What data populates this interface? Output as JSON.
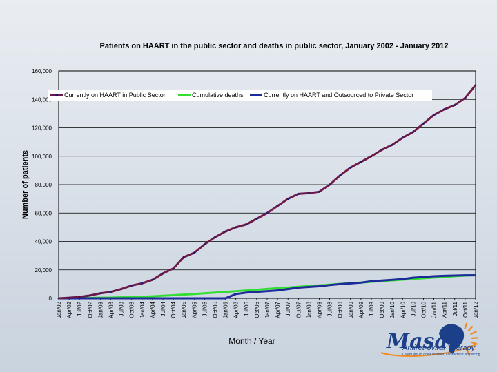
{
  "colors": {
    "bg_top": "#e9edf2",
    "bg_bottom": "#c9d3de",
    "series_public": "#6e1a48",
    "series_public_marker": "#0f1a7a",
    "series_deaths": "#33dd33",
    "series_outsourced": "#1c2a9a",
    "logo_blue": "#1b3f88",
    "logo_orange": "#f08a1c"
  },
  "logo": {
    "name": "Masa",
    "subtitle": "Antiretroviral Therapy",
    "tagline": "Lorem ipsum dolor sit amet, consectetur adipiscing"
  },
  "chart_data": {
    "type": "line",
    "title": "Patients on HAART in the public sector and deaths in public sector, January 2002 - January 2012",
    "xlabel": "Month / Year",
    "ylabel": "Number of patients",
    "ylim": [
      0,
      160000
    ],
    "yticks": [
      "0",
      "20,000",
      "40,000",
      "60,000",
      "80,000",
      "100,000",
      "120,000",
      "140,000",
      "160,000"
    ],
    "grid": "y-major",
    "legend_position": "top-left",
    "categories": [
      "Jan/02",
      "Apr/02",
      "Jul/02",
      "Oct/02",
      "Jan/03",
      "Apr/03",
      "Jul/03",
      "Oct/03",
      "Jan/04",
      "Apr/04",
      "Jul/04",
      "Oct/04",
      "Jan/05",
      "Apr/05",
      "Jul/05",
      "Oct/05",
      "Jan/06",
      "Apr/06",
      "Jul/06",
      "Oct/06",
      "Jan/07",
      "Apr/07",
      "Jul/07",
      "Oct/07",
      "Jan/08",
      "Apr/08",
      "Jul/08",
      "Oct/08",
      "Jan/09",
      "Apr/09",
      "Jul/09",
      "Oct/09",
      "Jan/10",
      "Apr/10",
      "Jul/10",
      "Oct/10",
      "Jan/11",
      "Apr/11",
      "Jul/11",
      "Oct/11",
      "Jan/12"
    ],
    "series": [
      {
        "name": "Currently on HAART in Public Sector",
        "values": [
          0,
          400,
          1000,
          2000,
          3500,
          4500,
          6500,
          9000,
          10500,
          13000,
          17500,
          21000,
          29000,
          32000,
          38000,
          43000,
          47000,
          50000,
          52000,
          56000,
          60000,
          65000,
          70000,
          73500,
          74000,
          75000,
          80000,
          86500,
          92000,
          96000,
          100000,
          104500,
          108000,
          113000,
          117000,
          123000,
          129000,
          133000,
          136000,
          141000,
          150000
        ]
      },
      {
        "name": "Cumulative deaths",
        "values": [
          0,
          100,
          200,
          300,
          400,
          500,
          700,
          900,
          1100,
          1400,
          1800,
          2200,
          2600,
          3000,
          3500,
          4000,
          4500,
          5000,
          5500,
          6000,
          6600,
          7100,
          7600,
          8100,
          8600,
          9100,
          9600,
          10100,
          10600,
          11100,
          11600,
          12100,
          12600,
          13100,
          13600,
          14100,
          14600,
          15100,
          15600,
          16000,
          16300
        ]
      },
      {
        "name": "Currently on HAART and Outsourced to Private Sector",
        "values": [
          0,
          0,
          0,
          0,
          0,
          0,
          0,
          0,
          0,
          0,
          0,
          0,
          0,
          0,
          0,
          0,
          0,
          3000,
          4000,
          4500,
          5000,
          5500,
          6500,
          7500,
          8000,
          8500,
          9300,
          10000,
          10500,
          11000,
          12000,
          12500,
          13000,
          13500,
          14500,
          15000,
          15500,
          15800,
          16000,
          16200,
          16200
        ]
      }
    ]
  }
}
